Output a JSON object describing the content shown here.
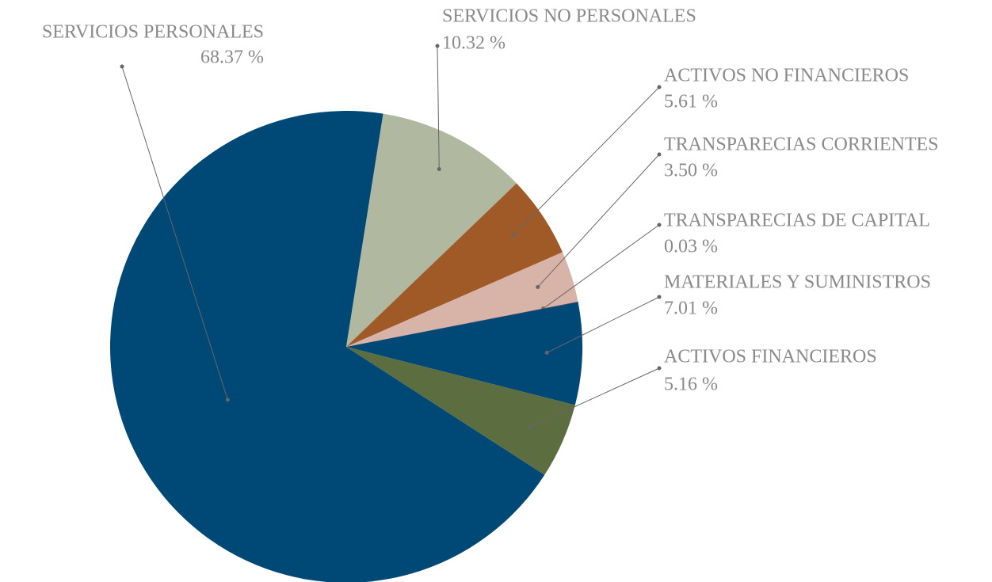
{
  "chart_data": {
    "type": "pie",
    "categories": [
      "SERVICIOS PERSONALES",
      "SERVICIOS NO PERSONALES",
      "ACTIVOS NO FINANCIEROS",
      "TRANSPARECIAS CORRIENTES",
      "TRANSPARECIAS DE CAPITAL",
      "MATERIALES Y SUMINISTROS",
      "ACTIVOS FINANCIEROS"
    ],
    "values": [
      68.37,
      10.32,
      5.61,
      3.5,
      0.03,
      7.01,
      5.16
    ],
    "value_labels": [
      "68.37 %",
      "10.32 %",
      "5.61 %",
      "3.50 %",
      "0.03 %",
      "7.01 %",
      "5.16 %"
    ],
    "colors": [
      "#004876",
      "#b0b8a0",
      "#a05a28",
      "#d8b4a8",
      "#8a2a30",
      "#004876",
      "#5c6e40"
    ]
  }
}
